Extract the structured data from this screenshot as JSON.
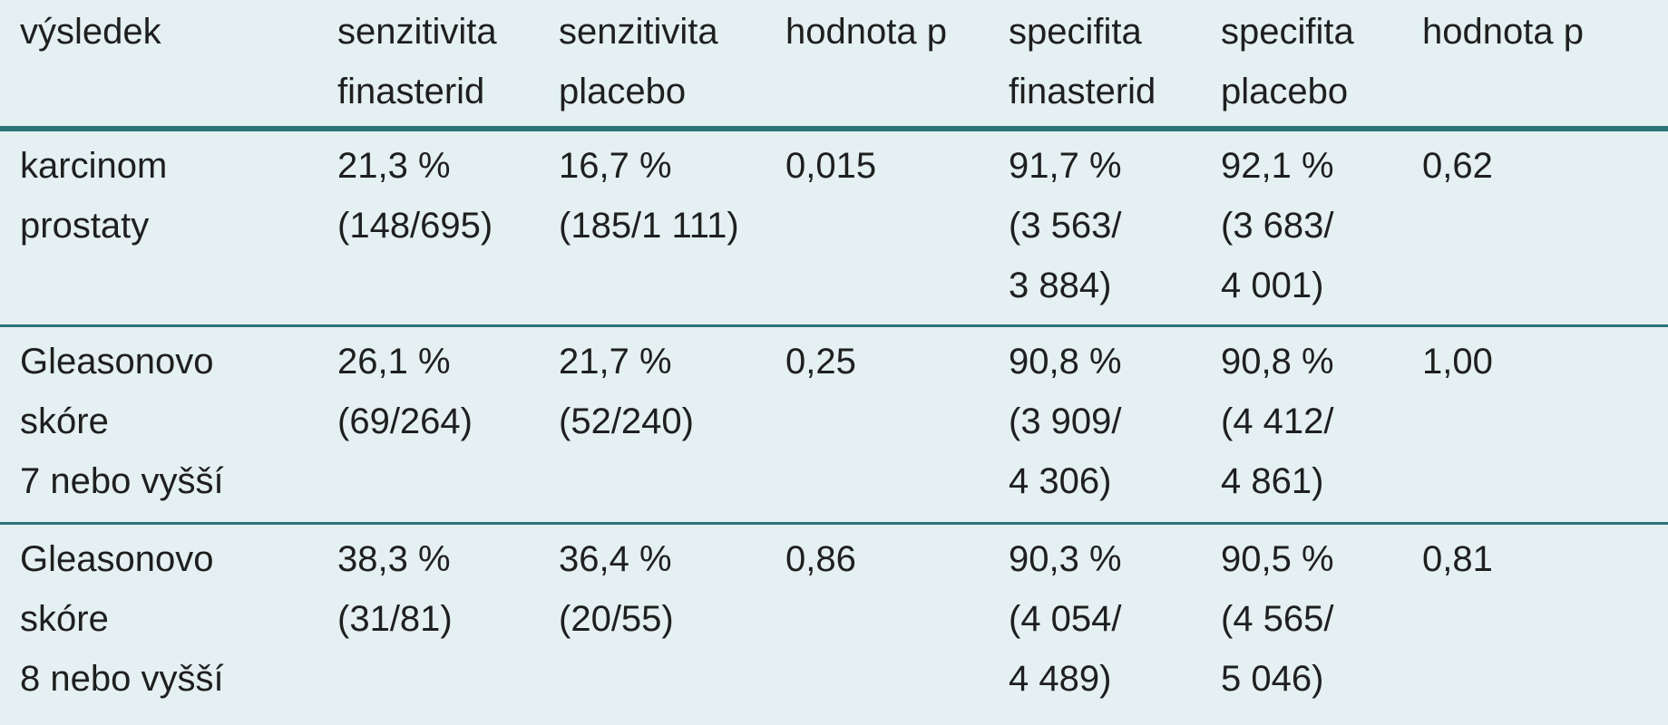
{
  "table": {
    "headers": [
      [
        "výsledek"
      ],
      [
        "senzitivita",
        "finasterid"
      ],
      [
        "senzitivita",
        "placebo"
      ],
      [
        "hodnota p"
      ],
      [
        "specifita",
        "finasterid"
      ],
      [
        "specifita",
        "placebo"
      ],
      [
        "hodnota p"
      ]
    ],
    "rows": [
      {
        "outcome": [
          "karcinom",
          "prostaty"
        ],
        "sens_fin": [
          "21,3 %",
          "(148/695)"
        ],
        "sens_plac": [
          "16,7 %",
          "(185/1 111)"
        ],
        "p_sens": [
          "0,015"
        ],
        "spec_fin": [
          "91,7 %",
          "(3 563/",
          "3 884)"
        ],
        "spec_plac": [
          "92,1 %",
          "(3 683/",
          "4 001)"
        ],
        "p_spec": [
          "0,62"
        ]
      },
      {
        "outcome": [
          "Gleasonovo",
          "skóre",
          "7 nebo vyšší"
        ],
        "sens_fin": [
          "26,1 %",
          "(69/264)"
        ],
        "sens_plac": [
          "21,7 %",
          "(52/240)"
        ],
        "p_sens": [
          "0,25"
        ],
        "spec_fin": [
          "90,8 %",
          "(3 909/",
          "4 306)"
        ],
        "spec_plac": [
          "90,8 %",
          "(4 412/",
          "4 861)"
        ],
        "p_spec": [
          "1,00"
        ]
      },
      {
        "outcome": [
          "Gleasonovo",
          "skóre",
          "8 nebo vyšší"
        ],
        "sens_fin": [
          "38,3 %",
          "(31/81)"
        ],
        "sens_plac": [
          "36,4 %",
          "(20/55)"
        ],
        "p_sens": [
          "0,86"
        ],
        "spec_fin": [
          "90,3 %",
          "(4 054/",
          "4 489)"
        ],
        "spec_plac": [
          "90,5 %",
          "(4 565/",
          "5 046)"
        ],
        "p_spec": [
          "0,81"
        ]
      }
    ]
  },
  "colors": {
    "background": "#e4f0f2",
    "rule": "#2d7478",
    "text": "#1f1f1f"
  }
}
